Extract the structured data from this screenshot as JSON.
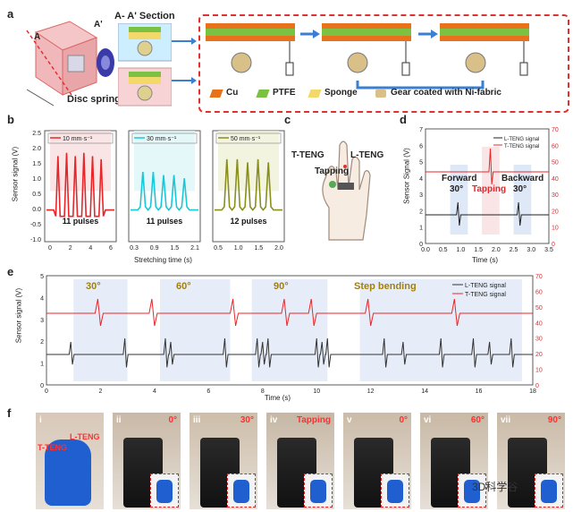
{
  "panel_a": {
    "label": "a",
    "dim_a": "A",
    "dim_a2": "A'",
    "section_title": "A- A' Section",
    "disc_spring": "Disc spring",
    "legend": [
      "Cu",
      "PTFE",
      "Sponge",
      "Gear coated with Ni-fabric"
    ],
    "colors": {
      "cu": "#e8721c",
      "ptfe": "#7cc242",
      "sponge": "#f2d96a",
      "gear": "#d9c089",
      "frame": "#e03030"
    }
  },
  "panel_b": {
    "label": "b",
    "ylabel": "Sensor signal (V)",
    "xlabel": "Stretching time (s)",
    "charts": [
      {
        "legend": "10 mm·s⁻¹",
        "pulses": "11 pulses",
        "color": "#e8262a",
        "xticks": [
          "0",
          "2",
          "4",
          "6"
        ]
      },
      {
        "legend": "30 mm·s⁻¹",
        "pulses": "11 pulses",
        "color": "#19c8d8",
        "xticks": [
          "0.3",
          "0.9",
          "1.5",
          "2.1"
        ]
      },
      {
        "legend": "50 mm·s⁻¹",
        "pulses": "12 pulses",
        "color": "#8a8f1c",
        "xticks": [
          "0.5",
          "1.0",
          "1.5",
          "2.0"
        ]
      }
    ],
    "yticks": [
      "2.5",
      "2.0",
      "1.5",
      "1.0",
      "0.5",
      "0.0",
      "-0.5",
      "-1.0"
    ]
  },
  "panel_c": {
    "label": "c",
    "t_teng": "T-TENG",
    "l_teng": "L-TENG",
    "tapping": "Tapping"
  },
  "panel_d": {
    "label": "d",
    "ylabel": "Sensor Signal (V)",
    "xlabel": "Time (s)",
    "legend": [
      "L-TENG signal",
      "T-TENG signal"
    ],
    "forward": "Forward",
    "forward_angle": "30°",
    "tapping": "Tapping",
    "backward": "Backward",
    "backward_angle": "30°",
    "xticks": [
      "0.0",
      "0.5",
      "1.0",
      "1.5",
      "2.0",
      "2.5",
      "3.0",
      "3.5"
    ],
    "yticks_left": [
      "0",
      "1",
      "2",
      "3",
      "4",
      "5",
      "6",
      "7"
    ],
    "yticks_right": [
      "70",
      "60",
      "50",
      "40",
      "30",
      "20",
      "10",
      "0"
    ]
  },
  "panel_e": {
    "label": "e",
    "ylabel": "Sensor signal (V)",
    "xlabel": "Time (s)",
    "legend": [
      "L-TENG signal",
      "T-TENG signal"
    ],
    "angles": [
      "30°",
      "60°",
      "90°"
    ],
    "step_bending": "Step bending",
    "xticks": [
      "0",
      "2",
      "4",
      "6",
      "8",
      "10",
      "12",
      "14",
      "16",
      "18"
    ],
    "yticks_left": [
      "5",
      "4",
      "3",
      "2",
      "1",
      "0"
    ],
    "yticks_right": [
      "70",
      "60",
      "50",
      "40",
      "30",
      "20",
      "10",
      "0"
    ]
  },
  "panel_f": {
    "label": "f",
    "photos": [
      {
        "tag": "i",
        "angle": "",
        "text1": "T-TENG",
        "text2": "L-TENG"
      },
      {
        "tag": "ii",
        "angle": "0°"
      },
      {
        "tag": "iii",
        "angle": "30°"
      },
      {
        "tag": "iv",
        "angle": "Tapping"
      },
      {
        "tag": "v",
        "angle": "0°"
      },
      {
        "tag": "vi",
        "angle": "60°"
      },
      {
        "tag": "vii",
        "angle": "90°"
      }
    ]
  },
  "watermark": "3D科学谷",
  "chart_data": [
    {
      "type": "line",
      "title": "",
      "xlabel": "Stretching time (s)",
      "ylabel": "Sensor signal (V)",
      "ylim": [
        -1.0,
        2.5
      ],
      "series": [
        {
          "name": "10 mm·s⁻¹",
          "values": [
            0,
            1.7,
            -0.2,
            1.8,
            -0.2,
            1.7,
            -0.2,
            1.8,
            -0.2,
            1.7,
            -0.2,
            1.6,
            0
          ]
        }
      ]
    },
    {
      "type": "line",
      "title": "",
      "xlabel": "Stretching time (s)",
      "ylabel": "Sensor signal (V)",
      "ylim": [
        -1.0,
        2.5
      ],
      "series": [
        {
          "name": "30 mm·s⁻¹",
          "values": [
            0,
            1.2,
            0,
            1.2,
            0,
            1.1,
            0,
            1.1,
            0,
            1.0,
            0
          ]
        }
      ]
    },
    {
      "type": "line",
      "title": "",
      "xlabel": "Stretching time (s)",
      "ylabel": "Sensor signal (V)",
      "ylim": [
        -1.0,
        2.5
      ],
      "series": [
        {
          "name": "50 mm·s⁻¹",
          "values": [
            0,
            1.6,
            0,
            1.6,
            0,
            1.5,
            0,
            1.6,
            0,
            1.5,
            0
          ]
        }
      ]
    },
    {
      "type": "line",
      "title": "",
      "xlabel": "Time (s)",
      "ylabel": "Sensor Signal (V)",
      "xlim": [
        0,
        3.5
      ],
      "series": [
        {
          "name": "L-TENG signal"
        },
        {
          "name": "T-TENG signal"
        }
      ]
    },
    {
      "type": "line",
      "title": "",
      "xlabel": "Time (s)",
      "ylabel": "Sensor signal (V)",
      "xlim": [
        0,
        18
      ],
      "series": [
        {
          "name": "L-TENG signal"
        },
        {
          "name": "T-TENG signal"
        }
      ]
    }
  ]
}
